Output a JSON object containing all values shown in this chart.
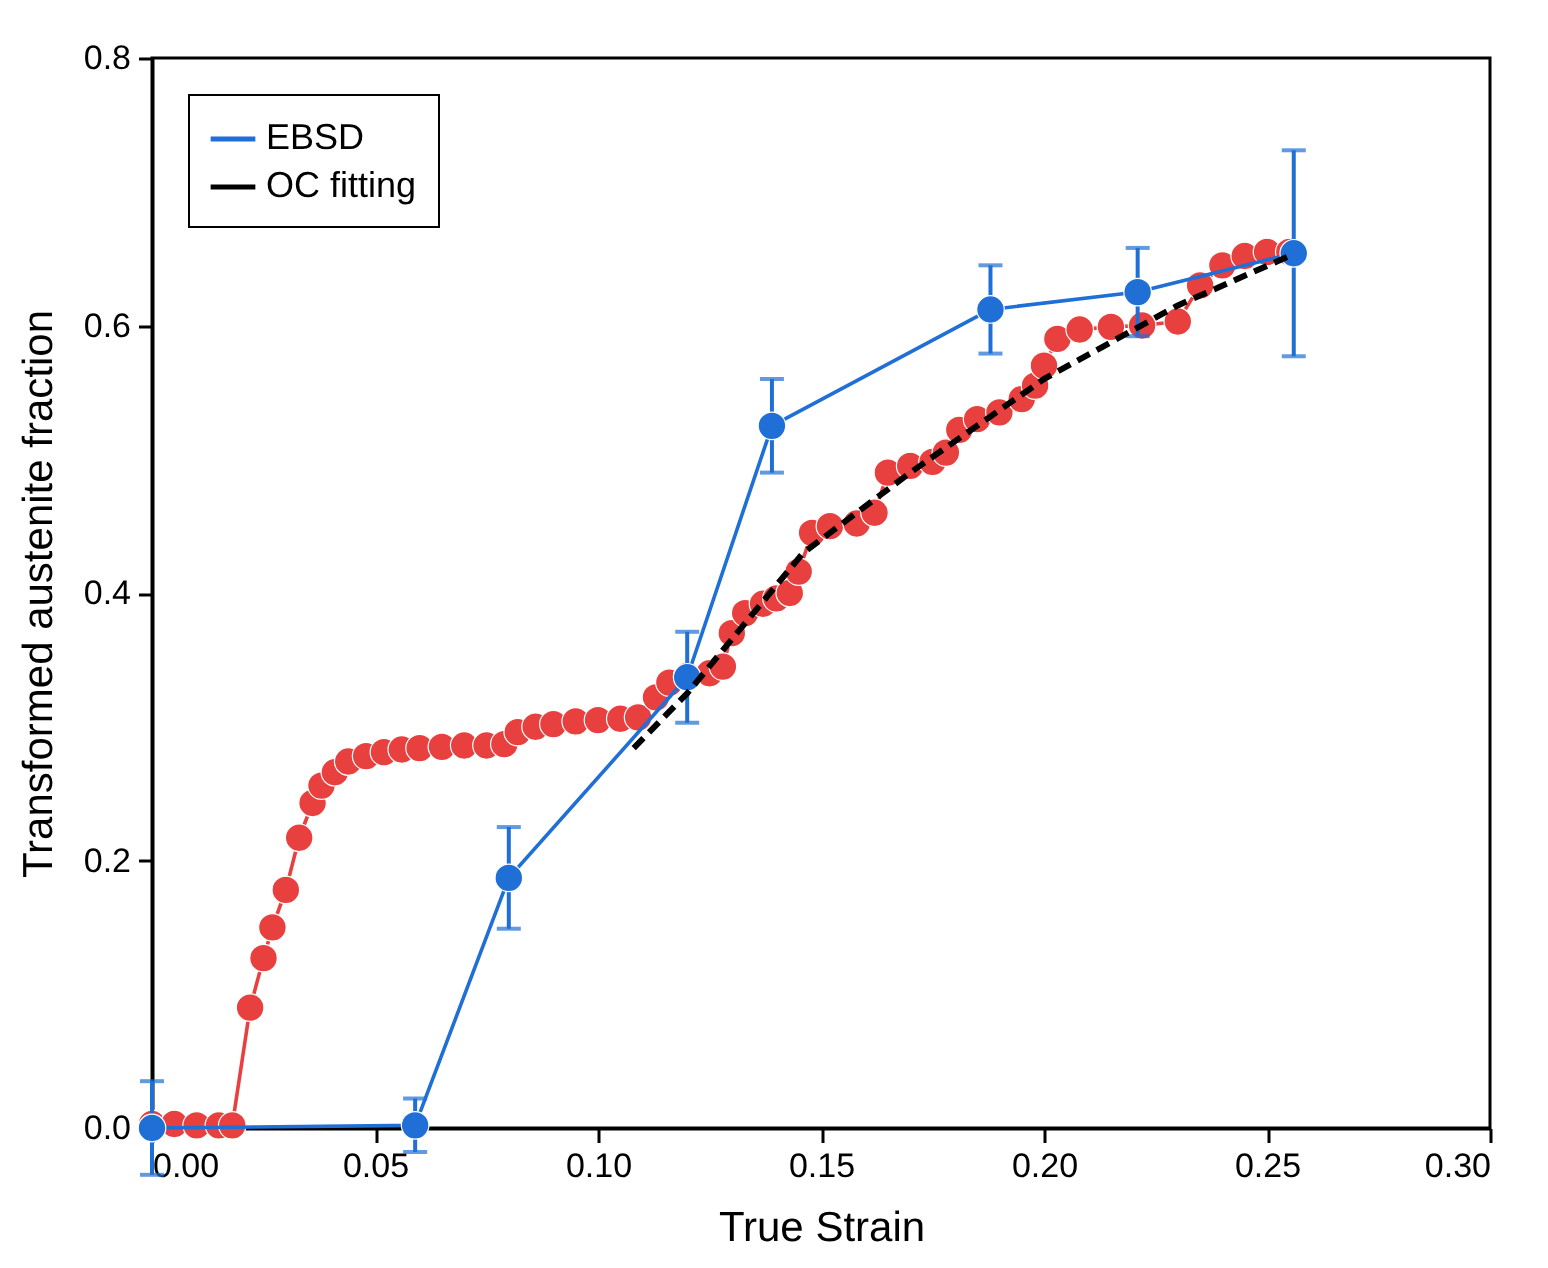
{
  "chart_data": {
    "type": "line",
    "xlabel": "True Strain",
    "ylabel": "Transformed austenite fraction",
    "xlim": [
      0,
      0.3
    ],
    "ylim": [
      0,
      0.8
    ],
    "xticks": [
      {
        "value": 0,
        "label": "0.00"
      },
      0.05,
      {
        "value": 0.1,
        "label": "0.10"
      },
      0.15,
      {
        "value": 0.2,
        "label": "0.20"
      },
      0.25,
      {
        "value": 0.3,
        "label": "0.30"
      }
    ],
    "yticks": [
      {
        "value": 0,
        "label": "0.0"
      },
      0.2,
      0.4,
      0.6,
      0.8
    ],
    "grid": false,
    "legend": "top left",
    "series": [
      {
        "name": "EBSD",
        "color": "#1f6fd6",
        "marker": "circle",
        "line_style": "solid",
        "x": [
          0,
          0.059,
          0.08,
          0.12,
          0.139,
          0.188,
          0.221,
          0.256
        ],
        "values": [
          0,
          0.002,
          0.187,
          0.337,
          0.525,
          0.612,
          0.625,
          0.654
        ],
        "errors": [
          0.035,
          0.02,
          0.038,
          0.034,
          0.035,
          0.033,
          0.033,
          0.077
        ]
      },
      {
        "color": "#e8403f",
        "marker": "circle",
        "line_style": "solid",
        "x": [
          0,
          0.005,
          0.01,
          0.015,
          0.018,
          0.022,
          0.025,
          0.027,
          0.03,
          0.033,
          0.036,
          0.038,
          0.041,
          0.044,
          0.048,
          0.052,
          0.056,
          0.06,
          0.065,
          0.07,
          0.075,
          0.079,
          0.082,
          0.086,
          0.09,
          0.095,
          0.1,
          0.105,
          0.109,
          0.113,
          0.116,
          0.12,
          0.125,
          0.128,
          0.13,
          0.133,
          0.137,
          0.14,
          0.143,
          0.145,
          0.148,
          0.152,
          0.158,
          0.162,
          0.165,
          0.17,
          0.175,
          0.178,
          0.181,
          0.185,
          0.19,
          0.195,
          0.198,
          0.2,
          0.203,
          0.208,
          0.215,
          0.222,
          0.23,
          0.235,
          0.24,
          0.245,
          0.25,
          0.255
        ],
        "values": [
          0.003,
          0.003,
          0.002,
          0.002,
          0.002,
          0.09,
          0.127,
          0.15,
          0.178,
          0.217,
          0.243,
          0.256,
          0.266,
          0.274,
          0.278,
          0.281,
          0.283,
          0.284,
          0.285,
          0.286,
          0.286,
          0.287,
          0.296,
          0.3,
          0.302,
          0.304,
          0.305,
          0.306,
          0.307,
          0.322,
          0.333,
          0.338,
          0.34,
          0.345,
          0.37,
          0.385,
          0.392,
          0.396,
          0.4,
          0.416,
          0.445,
          0.45,
          0.452,
          0.46,
          0.49,
          0.495,
          0.498,
          0.505,
          0.522,
          0.53,
          0.535,
          0.545,
          0.555,
          0.57,
          0.59,
          0.597,
          0.599,
          0.6,
          0.603,
          0.63,
          0.645,
          0.652,
          0.655,
          0.655
        ]
      },
      {
        "name": "OC fitting",
        "color": "#000000",
        "marker": "none",
        "line_style": "dashed",
        "x": [
          0.108,
          0.12,
          0.146,
          0.17,
          0.2,
          0.23,
          0.255
        ],
        "values": [
          0.284,
          0.325,
          0.43,
          0.49,
          0.56,
          0.615,
          0.652
        ]
      }
    ]
  }
}
